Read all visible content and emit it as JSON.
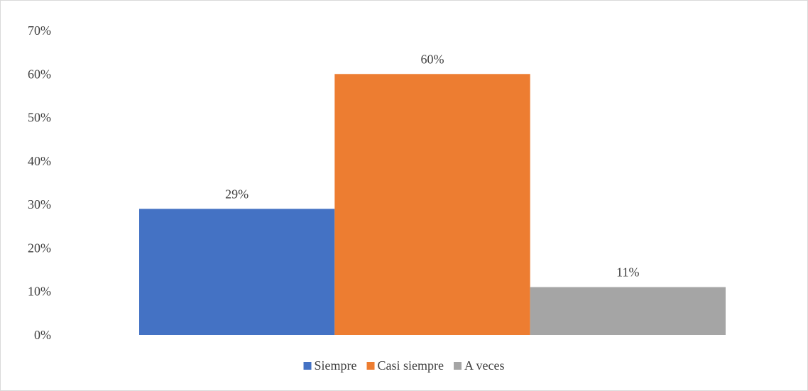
{
  "chart_data": {
    "type": "bar",
    "title": "",
    "xlabel": "",
    "ylabel": "",
    "ylim": [
      0,
      70
    ],
    "y_ticks": [
      "0%",
      "10%",
      "20%",
      "30%",
      "40%",
      "50%",
      "60%",
      "70%"
    ],
    "grid": false,
    "legend_position": "bottom",
    "series": [
      {
        "name": "Siempre",
        "value": 29,
        "label": "29%",
        "color": "#4472c4"
      },
      {
        "name": "Casi siempre",
        "value": 60,
        "label": "60%",
        "color": "#ed7d31"
      },
      {
        "name": "A veces",
        "value": 11,
        "label": "11%",
        "color": "#a5a5a5"
      }
    ]
  }
}
